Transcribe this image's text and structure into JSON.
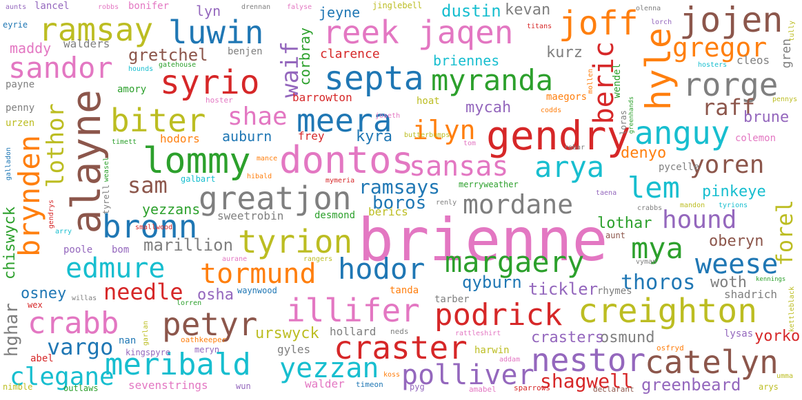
{
  "palette": {
    "pink": "#e377c2",
    "blue": "#1f77b4",
    "orange": "#ff7f0e",
    "green": "#2ca02c",
    "red": "#d62728",
    "purple": "#9467bd",
    "brown": "#8c564b",
    "gray": "#7f7f7f",
    "olive": "#bcbd22",
    "cyan": "#17becf"
  },
  "words": [
    {
      "text": "brienne",
      "color": "#e377c2"
    },
    {
      "text": "alayne",
      "color": "#8c564b"
    },
    {
      "text": "dontos",
      "color": "#e377c2"
    },
    {
      "text": "gendry",
      "color": "#d62728"
    },
    {
      "text": "creighton",
      "color": "#bcbd22"
    },
    {
      "text": "lommy",
      "color": "#2ca02c"
    },
    {
      "text": "sansas",
      "color": "#e377c2"
    },
    {
      "text": "greatjon",
      "color": "#7f7f7f"
    },
    {
      "text": "reek",
      "color": "#e377c2"
    },
    {
      "text": "jaqen",
      "color": "#e377c2"
    },
    {
      "text": "septa",
      "color": "#1f77b4"
    },
    {
      "text": "syrio",
      "color": "#d62728"
    },
    {
      "text": "meera",
      "color": "#1f77b4"
    },
    {
      "text": "margaery",
      "color": "#2ca02c"
    },
    {
      "text": "petyr",
      "color": "#8c564b"
    },
    {
      "text": "illifer",
      "color": "#e377c2"
    },
    {
      "text": "meribald",
      "color": "#17becf"
    },
    {
      "text": "craster",
      "color": "#d62728"
    },
    {
      "text": "catelyn",
      "color": "#8c564b"
    },
    {
      "text": "nestor",
      "color": "#9467bd"
    },
    {
      "text": "podrick",
      "color": "#d62728"
    },
    {
      "text": "arya",
      "color": "#17becf"
    },
    {
      "text": "mordane",
      "color": "#7f7f7f"
    },
    {
      "text": "myranda",
      "color": "#2ca02c"
    },
    {
      "text": "ramsay",
      "color": "#bcbd22"
    },
    {
      "text": "luwin",
      "color": "#1f77b4"
    },
    {
      "text": "sandor",
      "color": "#e377c2"
    },
    {
      "text": "joff",
      "color": "#ff7f0e"
    },
    {
      "text": "jojen",
      "color": "#8c564b"
    },
    {
      "text": "rorge",
      "color": "#7f7f7f"
    },
    {
      "text": "gregor",
      "color": "#ff7f0e"
    },
    {
      "text": "hyle",
      "color": "#ff7f0e"
    },
    {
      "text": "biter",
      "color": "#bcbd22"
    },
    {
      "text": "bronn",
      "color": "#1f77b4"
    },
    {
      "text": "brynden",
      "color": "#ff7f0e"
    },
    {
      "text": "lothor",
      "color": "#bcbd22"
    },
    {
      "text": "edmure",
      "color": "#17becf"
    },
    {
      "text": "tyrion",
      "color": "#bcbd22"
    },
    {
      "text": "tormund",
      "color": "#ff7f0e"
    },
    {
      "text": "hodor",
      "color": "#1f77b4"
    },
    {
      "text": "crabb",
      "color": "#e377c2"
    },
    {
      "text": "yezzan",
      "color": "#17becf"
    },
    {
      "text": "polliver",
      "color": "#9467bd"
    },
    {
      "text": "clegane",
      "color": "#17becf"
    },
    {
      "text": "anguy",
      "color": "#17becf"
    },
    {
      "text": "beric",
      "color": "#d62728"
    },
    {
      "text": "lem",
      "color": "#17becf"
    },
    {
      "text": "yoren",
      "color": "#8c564b"
    },
    {
      "text": "mya",
      "color": "#2ca02c"
    },
    {
      "text": "hound",
      "color": "#9467bd"
    },
    {
      "text": "weese",
      "color": "#1f77b4"
    },
    {
      "text": "ilyn",
      "color": "#ff7f0e"
    },
    {
      "text": "shae",
      "color": "#e377c2"
    },
    {
      "text": "sam",
      "color": "#8c564b"
    },
    {
      "text": "waif",
      "color": "#9467bd"
    },
    {
      "text": "gretchel",
      "color": "#8c564b"
    },
    {
      "text": "raff",
      "color": "#8c564b"
    },
    {
      "text": "vargo",
      "color": "#1f77b4"
    },
    {
      "text": "needle",
      "color": "#d62728"
    },
    {
      "text": "shagwell",
      "color": "#d62728"
    },
    {
      "text": "greenbeard",
      "color": "#9467bd"
    },
    {
      "text": "ramsays",
      "color": "#1f77b4"
    },
    {
      "text": "boros",
      "color": "#1f77b4"
    },
    {
      "text": "forel",
      "color": "#bcbd22"
    },
    {
      "text": "thoros",
      "color": "#1f77b4"
    },
    {
      "text": "oberyn",
      "color": "#8c564b"
    },
    {
      "text": "qyburn",
      "color": "#1f77b4"
    },
    {
      "text": "tickler",
      "color": "#9467bd"
    },
    {
      "text": "yorko",
      "color": "#d62728"
    },
    {
      "text": "osmund",
      "color": "#7f7f7f"
    },
    {
      "text": "crasters",
      "color": "#9467bd"
    },
    {
      "text": "urswyck",
      "color": "#bcbd22"
    },
    {
      "text": "marillion",
      "color": "#7f7f7f"
    },
    {
      "text": "osney",
      "color": "#1f77b4"
    },
    {
      "text": "osha",
      "color": "#9467bd"
    },
    {
      "text": "woth",
      "color": "#7f7f7f"
    },
    {
      "text": "lothar",
      "color": "#2ca02c"
    },
    {
      "text": "pinkeye",
      "color": "#17becf"
    },
    {
      "text": "denyo",
      "color": "#ff7f0e"
    },
    {
      "text": "brune",
      "color": "#9467bd"
    },
    {
      "text": "mycah",
      "color": "#9467bd"
    },
    {
      "text": "kyra",
      "color": "#1f77b4"
    },
    {
      "text": "auburn",
      "color": "#1f77b4"
    },
    {
      "text": "yezzans",
      "color": "#2ca02c"
    },
    {
      "text": "kurz",
      "color": "#7f7f7f"
    },
    {
      "text": "dustin",
      "color": "#17becf"
    },
    {
      "text": "kevan",
      "color": "#7f7f7f"
    },
    {
      "text": "jeyne",
      "color": "#1f77b4"
    },
    {
      "text": "briennes",
      "color": "#17becf"
    },
    {
      "text": "clarence",
      "color": "#d62728"
    },
    {
      "text": "corbray",
      "color": "#2ca02c"
    },
    {
      "text": "chiswyck",
      "color": "#2ca02c"
    },
    {
      "text": "hghar",
      "color": "#7f7f7f"
    },
    {
      "text": "maddy",
      "color": "#e377c2"
    },
    {
      "text": "walders",
      "color": "#7f7f7f"
    },
    {
      "text": "benjen",
      "color": "#7f7f7f"
    },
    {
      "text": "lyn",
      "color": "#9467bd"
    },
    {
      "text": "sweetrobin",
      "color": "#7f7f7f"
    },
    {
      "text": "hollard",
      "color": "#7f7f7f"
    },
    {
      "text": "gyles",
      "color": "#7f7f7f"
    },
    {
      "text": "walder",
      "color": "#e377c2"
    },
    {
      "text": "sevenstrings",
      "color": "#e377c2"
    },
    {
      "text": "nan",
      "color": "#1f77b4"
    },
    {
      "text": "harwin",
      "color": "#bcbd22"
    },
    {
      "text": "tanda",
      "color": "#ff7f0e"
    },
    {
      "text": "tarber",
      "color": "#7f7f7f"
    },
    {
      "text": "shadrich",
      "color": "#7f7f7f"
    },
    {
      "text": "rhymes",
      "color": "#7f7f7f"
    },
    {
      "text": "lysas",
      "color": "#9467bd"
    },
    {
      "text": "hodors",
      "color": "#ff7f0e"
    },
    {
      "text": "frey",
      "color": "#d62728"
    },
    {
      "text": "barrowton",
      "color": "#d62728"
    },
    {
      "text": "hoat",
      "color": "#bcbd22"
    },
    {
      "text": "maegors",
      "color": "#ff7f0e"
    },
    {
      "text": "cleos",
      "color": "#7f7f7f"
    },
    {
      "text": "colemon",
      "color": "#e377c2"
    },
    {
      "text": "pycelle",
      "color": "#7f7f7f"
    },
    {
      "text": "desmond",
      "color": "#2ca02c"
    },
    {
      "text": "berics",
      "color": "#bcbd22"
    },
    {
      "text": "amory",
      "color": "#2ca02c"
    },
    {
      "text": "payne",
      "color": "#7f7f7f"
    },
    {
      "text": "penny",
      "color": "#7f7f7f"
    },
    {
      "text": "urzen",
      "color": "#bcbd22"
    },
    {
      "text": "lancel",
      "color": "#9467bd"
    },
    {
      "text": "bonifer",
      "color": "#e377c2"
    },
    {
      "text": "gren",
      "color": "#7f7f7f"
    },
    {
      "text": "wendel",
      "color": "#2ca02c"
    },
    {
      "text": "loras",
      "color": "#7f7f7f"
    },
    {
      "text": "galbart",
      "color": "#17becf"
    },
    {
      "text": "waynwood",
      "color": "#1f77b4"
    },
    {
      "text": "merryweather",
      "color": "#2ca02c"
    },
    {
      "text": "aunt",
      "color": "#8c564b"
    },
    {
      "text": "poole",
      "color": "#9467bd"
    },
    {
      "text": "bom",
      "color": "#9467bd"
    },
    {
      "text": "abel",
      "color": "#d62728"
    },
    {
      "text": "nimble",
      "color": "#bcbd22"
    },
    {
      "text": "outlaws",
      "color": "#2ca02c"
    },
    {
      "text": "kingspyre",
      "color": "#9467bd"
    },
    {
      "text": "meryn",
      "color": "#9467bd"
    },
    {
      "text": "timeon",
      "color": "#1f77b4"
    },
    {
      "text": "wun",
      "color": "#9467bd"
    },
    {
      "text": "pyg",
      "color": "#9467bd"
    },
    {
      "text": "sparrows",
      "color": "#d62728"
    },
    {
      "text": "declarant",
      "color": "#8c564b"
    },
    {
      "text": "arys",
      "color": "#bcbd22"
    },
    {
      "text": "amabel",
      "color": "#e377c2"
    },
    {
      "text": "wex",
      "color": "#d62728"
    },
    {
      "text": "willas",
      "color": "#7f7f7f"
    },
    {
      "text": "lorren",
      "color": "#2ca02c"
    },
    {
      "text": "garlan",
      "color": "#bcbd22"
    },
    {
      "text": "oathkeeper",
      "color": "#ff7f0e"
    },
    {
      "text": "neds",
      "color": "#7f7f7f"
    },
    {
      "text": "addam",
      "color": "#e377c2"
    },
    {
      "text": "osfryd",
      "color": "#ff7f0e"
    },
    {
      "text": "rattleshirt",
      "color": "#e377c2"
    },
    {
      "text": "koss",
      "color": "#ff7f0e"
    },
    {
      "text": "umma",
      "color": "#bcbd22"
    },
    {
      "text": "kettleblack",
      "color": "#bcbd22"
    },
    {
      "text": "kennings",
      "color": "#2ca02c"
    },
    {
      "text": "vyman",
      "color": "#7f7f7f"
    },
    {
      "text": "aurane",
      "color": "#e377c2"
    },
    {
      "text": "rangers",
      "color": "#bcbd22"
    },
    {
      "text": "smallwood",
      "color": "#d62728"
    },
    {
      "text": "tyrell",
      "color": "#7f7f7f"
    },
    {
      "text": "hibald",
      "color": "#ff7f0e"
    },
    {
      "text": "mance",
      "color": "#ff7f0e"
    },
    {
      "text": "mymeria",
      "color": "#d62728"
    },
    {
      "text": "renly",
      "color": "#7f7f7f"
    },
    {
      "text": "taena",
      "color": "#9467bd"
    },
    {
      "text": "crabbs",
      "color": "#7f7f7f"
    },
    {
      "text": "mandon",
      "color": "#bcbd22"
    },
    {
      "text": "tyrions",
      "color": "#17becf"
    },
    {
      "text": "weasel",
      "color": "#2ca02c"
    },
    {
      "text": "galladon",
      "color": "#1f77b4"
    },
    {
      "text": "gendrys",
      "color": "#d62728"
    },
    {
      "text": "arry",
      "color": "#17becf"
    },
    {
      "text": "timett",
      "color": "#2ca02c"
    },
    {
      "text": "butterbumps",
      "color": "#bcbd22"
    },
    {
      "text": "tom",
      "color": "#e377c2"
    },
    {
      "text": "robar",
      "color": "#7f7f7f"
    },
    {
      "text": "joseth",
      "color": "#e377c2"
    },
    {
      "text": "codds",
      "color": "#ff7f0e"
    },
    {
      "text": "greenhands",
      "color": "#2ca02c"
    },
    {
      "text": "pennys",
      "color": "#bcbd22"
    },
    {
      "text": "hoster",
      "color": "#e377c2"
    },
    {
      "text": "hosters",
      "color": "#17becf"
    },
    {
      "text": "mollen",
      "color": "#ff7f0e"
    },
    {
      "text": "hounds",
      "color": "#17becf"
    },
    {
      "text": "gatehouse",
      "color": "#2ca02c"
    },
    {
      "text": "eyrie",
      "color": "#1f77b4"
    },
    {
      "text": "aunts",
      "color": "#9467bd"
    },
    {
      "text": "robbs",
      "color": "#e377c2"
    },
    {
      "text": "drennan",
      "color": "#7f7f7f"
    },
    {
      "text": "falyse",
      "color": "#e377c2"
    },
    {
      "text": "jinglebell",
      "color": "#bcbd22"
    },
    {
      "text": "titans",
      "color": "#d62728"
    },
    {
      "text": "olenna",
      "color": "#7f7f7f"
    },
    {
      "text": "lorch",
      "color": "#9467bd"
    },
    {
      "text": "tully",
      "color": "#bcbd22"
    }
  ]
}
